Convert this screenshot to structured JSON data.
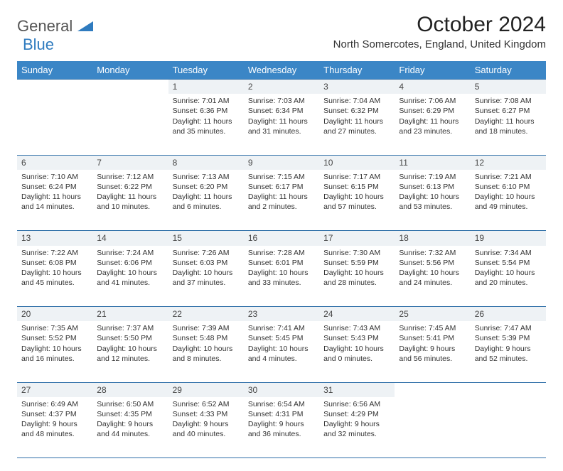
{
  "logo": {
    "text1": "General",
    "text2": "Blue"
  },
  "title": "October 2024",
  "location": "North Somercotes, England, United Kingdom",
  "colors": {
    "header_bg": "#3b86c6",
    "header_text": "#ffffff",
    "daynum_bg": "#eef2f5",
    "rule": "#2f6fa8",
    "logo_gray": "#555555",
    "logo_blue": "#2f7bbf"
  },
  "weekdays": [
    "Sunday",
    "Monday",
    "Tuesday",
    "Wednesday",
    "Thursday",
    "Friday",
    "Saturday"
  ],
  "weeks": [
    [
      null,
      null,
      {
        "n": "1",
        "sr": "Sunrise: 7:01 AM",
        "ss": "Sunset: 6:36 PM",
        "d1": "Daylight: 11 hours",
        "d2": "and 35 minutes."
      },
      {
        "n": "2",
        "sr": "Sunrise: 7:03 AM",
        "ss": "Sunset: 6:34 PM",
        "d1": "Daylight: 11 hours",
        "d2": "and 31 minutes."
      },
      {
        "n": "3",
        "sr": "Sunrise: 7:04 AM",
        "ss": "Sunset: 6:32 PM",
        "d1": "Daylight: 11 hours",
        "d2": "and 27 minutes."
      },
      {
        "n": "4",
        "sr": "Sunrise: 7:06 AM",
        "ss": "Sunset: 6:29 PM",
        "d1": "Daylight: 11 hours",
        "d2": "and 23 minutes."
      },
      {
        "n": "5",
        "sr": "Sunrise: 7:08 AM",
        "ss": "Sunset: 6:27 PM",
        "d1": "Daylight: 11 hours",
        "d2": "and 18 minutes."
      }
    ],
    [
      {
        "n": "6",
        "sr": "Sunrise: 7:10 AM",
        "ss": "Sunset: 6:24 PM",
        "d1": "Daylight: 11 hours",
        "d2": "and 14 minutes."
      },
      {
        "n": "7",
        "sr": "Sunrise: 7:12 AM",
        "ss": "Sunset: 6:22 PM",
        "d1": "Daylight: 11 hours",
        "d2": "and 10 minutes."
      },
      {
        "n": "8",
        "sr": "Sunrise: 7:13 AM",
        "ss": "Sunset: 6:20 PM",
        "d1": "Daylight: 11 hours",
        "d2": "and 6 minutes."
      },
      {
        "n": "9",
        "sr": "Sunrise: 7:15 AM",
        "ss": "Sunset: 6:17 PM",
        "d1": "Daylight: 11 hours",
        "d2": "and 2 minutes."
      },
      {
        "n": "10",
        "sr": "Sunrise: 7:17 AM",
        "ss": "Sunset: 6:15 PM",
        "d1": "Daylight: 10 hours",
        "d2": "and 57 minutes."
      },
      {
        "n": "11",
        "sr": "Sunrise: 7:19 AM",
        "ss": "Sunset: 6:13 PM",
        "d1": "Daylight: 10 hours",
        "d2": "and 53 minutes."
      },
      {
        "n": "12",
        "sr": "Sunrise: 7:21 AM",
        "ss": "Sunset: 6:10 PM",
        "d1": "Daylight: 10 hours",
        "d2": "and 49 minutes."
      }
    ],
    [
      {
        "n": "13",
        "sr": "Sunrise: 7:22 AM",
        "ss": "Sunset: 6:08 PM",
        "d1": "Daylight: 10 hours",
        "d2": "and 45 minutes."
      },
      {
        "n": "14",
        "sr": "Sunrise: 7:24 AM",
        "ss": "Sunset: 6:06 PM",
        "d1": "Daylight: 10 hours",
        "d2": "and 41 minutes."
      },
      {
        "n": "15",
        "sr": "Sunrise: 7:26 AM",
        "ss": "Sunset: 6:03 PM",
        "d1": "Daylight: 10 hours",
        "d2": "and 37 minutes."
      },
      {
        "n": "16",
        "sr": "Sunrise: 7:28 AM",
        "ss": "Sunset: 6:01 PM",
        "d1": "Daylight: 10 hours",
        "d2": "and 33 minutes."
      },
      {
        "n": "17",
        "sr": "Sunrise: 7:30 AM",
        "ss": "Sunset: 5:59 PM",
        "d1": "Daylight: 10 hours",
        "d2": "and 28 minutes."
      },
      {
        "n": "18",
        "sr": "Sunrise: 7:32 AM",
        "ss": "Sunset: 5:56 PM",
        "d1": "Daylight: 10 hours",
        "d2": "and 24 minutes."
      },
      {
        "n": "19",
        "sr": "Sunrise: 7:34 AM",
        "ss": "Sunset: 5:54 PM",
        "d1": "Daylight: 10 hours",
        "d2": "and 20 minutes."
      }
    ],
    [
      {
        "n": "20",
        "sr": "Sunrise: 7:35 AM",
        "ss": "Sunset: 5:52 PM",
        "d1": "Daylight: 10 hours",
        "d2": "and 16 minutes."
      },
      {
        "n": "21",
        "sr": "Sunrise: 7:37 AM",
        "ss": "Sunset: 5:50 PM",
        "d1": "Daylight: 10 hours",
        "d2": "and 12 minutes."
      },
      {
        "n": "22",
        "sr": "Sunrise: 7:39 AM",
        "ss": "Sunset: 5:48 PM",
        "d1": "Daylight: 10 hours",
        "d2": "and 8 minutes."
      },
      {
        "n": "23",
        "sr": "Sunrise: 7:41 AM",
        "ss": "Sunset: 5:45 PM",
        "d1": "Daylight: 10 hours",
        "d2": "and 4 minutes."
      },
      {
        "n": "24",
        "sr": "Sunrise: 7:43 AM",
        "ss": "Sunset: 5:43 PM",
        "d1": "Daylight: 10 hours",
        "d2": "and 0 minutes."
      },
      {
        "n": "25",
        "sr": "Sunrise: 7:45 AM",
        "ss": "Sunset: 5:41 PM",
        "d1": "Daylight: 9 hours",
        "d2": "and 56 minutes."
      },
      {
        "n": "26",
        "sr": "Sunrise: 7:47 AM",
        "ss": "Sunset: 5:39 PM",
        "d1": "Daylight: 9 hours",
        "d2": "and 52 minutes."
      }
    ],
    [
      {
        "n": "27",
        "sr": "Sunrise: 6:49 AM",
        "ss": "Sunset: 4:37 PM",
        "d1": "Daylight: 9 hours",
        "d2": "and 48 minutes."
      },
      {
        "n": "28",
        "sr": "Sunrise: 6:50 AM",
        "ss": "Sunset: 4:35 PM",
        "d1": "Daylight: 9 hours",
        "d2": "and 44 minutes."
      },
      {
        "n": "29",
        "sr": "Sunrise: 6:52 AM",
        "ss": "Sunset: 4:33 PM",
        "d1": "Daylight: 9 hours",
        "d2": "and 40 minutes."
      },
      {
        "n": "30",
        "sr": "Sunrise: 6:54 AM",
        "ss": "Sunset: 4:31 PM",
        "d1": "Daylight: 9 hours",
        "d2": "and 36 minutes."
      },
      {
        "n": "31",
        "sr": "Sunrise: 6:56 AM",
        "ss": "Sunset: 4:29 PM",
        "d1": "Daylight: 9 hours",
        "d2": "and 32 minutes."
      },
      null,
      null
    ]
  ]
}
